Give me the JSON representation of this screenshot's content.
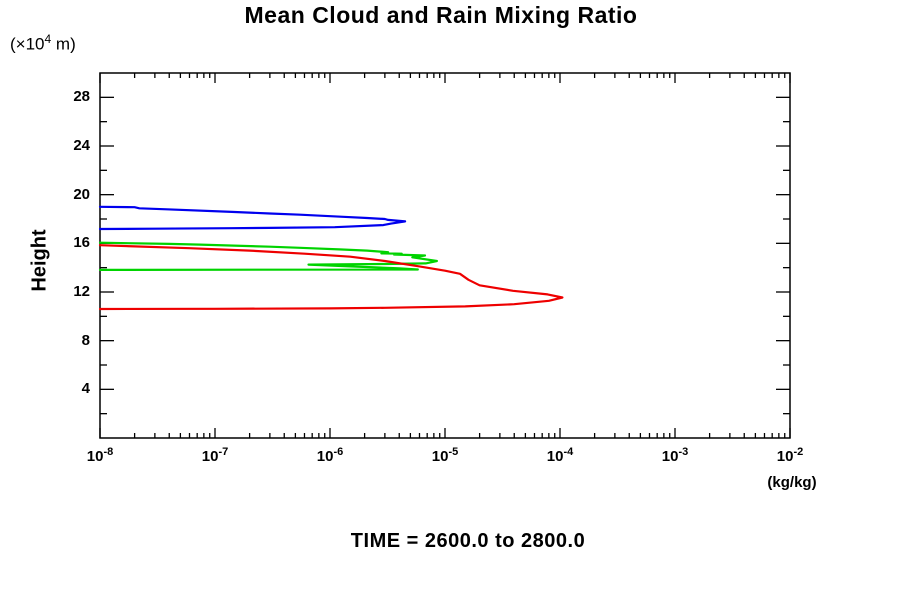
{
  "chart_data": {
    "type": "line",
    "title": "Mean Cloud and Rain Mixing Ratio",
    "xlabel": "(kg/kg)",
    "ylabel": "Height",
    "y_unit": {
      "prefix": "(×10",
      "sup": "4",
      "suffix": " m)"
    },
    "annotation": "TIME = 2600.0 to 2800.0",
    "x_scale": "log",
    "xlim": [
      1e-08,
      0.01
    ],
    "ylim": [
      0,
      30
    ],
    "grid": false,
    "legend": "none",
    "x_ticks": [
      {
        "base": "10",
        "exp": "-8"
      },
      {
        "base": "10",
        "exp": "-7"
      },
      {
        "base": "10",
        "exp": "-6"
      },
      {
        "base": "10",
        "exp": "-5"
      },
      {
        "base": "10",
        "exp": "-4"
      },
      {
        "base": "10",
        "exp": "-3"
      },
      {
        "base": "10",
        "exp": "-2"
      }
    ],
    "y_ticks": [
      {
        "value": 4,
        "label": "4"
      },
      {
        "value": 8,
        "label": "8"
      },
      {
        "value": 12,
        "label": "12"
      },
      {
        "value": 16,
        "label": "16"
      },
      {
        "value": 20,
        "label": "20"
      },
      {
        "value": 24,
        "label": "24"
      },
      {
        "value": 28,
        "label": "28"
      }
    ],
    "y_minor_step": 2,
    "axis_color": "#000000",
    "series": [
      {
        "name": "blue-profile",
        "color": "#0000ee",
        "points": [
          [
            1e-08,
            19.0
          ],
          [
            2e-08,
            18.97
          ],
          [
            2.2e-08,
            18.88
          ],
          [
            3.8e-08,
            18.8
          ],
          [
            1.4e-07,
            18.58
          ],
          [
            3e-07,
            18.45
          ],
          [
            5.5e-07,
            18.35
          ],
          [
            1.3e-06,
            18.18
          ],
          [
            2.1e-06,
            18.08
          ],
          [
            3e-06,
            18.0
          ],
          [
            3.2e-06,
            17.93
          ],
          [
            4.5e-06,
            17.8
          ],
          [
            3.4e-06,
            17.62
          ],
          [
            2.9e-06,
            17.5
          ],
          [
            1.1e-06,
            17.33
          ],
          [
            3e-07,
            17.27
          ],
          [
            1.4e-07,
            17.24
          ],
          [
            3e-08,
            17.2
          ],
          [
            1e-08,
            17.18
          ]
        ]
      },
      {
        "name": "green-profile",
        "color": "#00d300",
        "points": [
          [
            1e-08,
            16.05
          ],
          [
            4e-08,
            15.95
          ],
          [
            7.4e-08,
            15.9
          ],
          [
            3e-07,
            15.72
          ],
          [
            5.5e-07,
            15.63
          ],
          [
            1.2e-06,
            15.5
          ],
          [
            2.1e-06,
            15.4
          ],
          [
            3.2e-06,
            15.27
          ],
          [
            2.8e-06,
            15.17
          ],
          [
            4.2e-06,
            15.15
          ],
          [
            3.6e-06,
            15.08
          ],
          [
            6.7e-06,
            15.0
          ],
          [
            5.2e-06,
            14.85
          ],
          [
            8.5e-06,
            14.55
          ],
          [
            6.8e-06,
            14.35
          ],
          [
            3e-06,
            14.3
          ],
          [
            6.5e-07,
            14.25
          ],
          [
            1.5e-06,
            14.1
          ],
          [
            4e-06,
            13.95
          ],
          [
            5.8e-06,
            13.85
          ],
          [
            1e-08,
            13.82
          ]
        ]
      },
      {
        "name": "red-profile",
        "color": "#ee0000",
        "points": [
          [
            1e-08,
            15.85
          ],
          [
            6e-08,
            15.6
          ],
          [
            2e-07,
            15.4
          ],
          [
            6e-07,
            15.15
          ],
          [
            1.5e-06,
            14.9
          ],
          [
            3e-06,
            14.55
          ],
          [
            6e-06,
            14.1
          ],
          [
            1e-05,
            13.75
          ],
          [
            1.35e-05,
            13.5
          ],
          [
            1.6e-05,
            13.0
          ],
          [
            2e-05,
            12.55
          ],
          [
            3.9e-05,
            12.1
          ],
          [
            7.8e-05,
            11.8
          ],
          [
            0.000105,
            11.55
          ],
          [
            8e-05,
            11.28
          ],
          [
            4e-05,
            11.0
          ],
          [
            1.5e-05,
            10.82
          ],
          [
            3e-06,
            10.7
          ],
          [
            1e-06,
            10.65
          ],
          [
            1e-07,
            10.62
          ],
          [
            1e-08,
            10.6
          ]
        ]
      }
    ]
  }
}
